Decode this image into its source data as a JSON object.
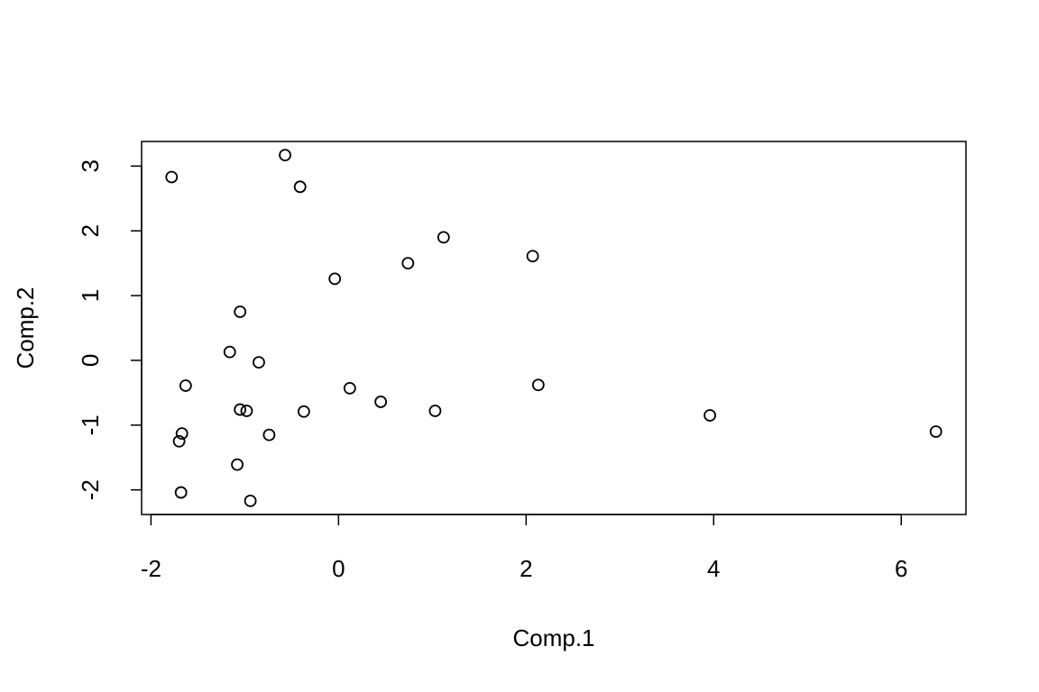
{
  "chart_data": {
    "type": "scatter",
    "x_label": "Comp.1",
    "y_label": "Comp.2",
    "x": [
      -1.78,
      -0.57,
      -0.41,
      1.12,
      2.07,
      0.74,
      -0.04,
      -1.05,
      -1.16,
      -0.85,
      -1.63,
      0.12,
      2.13,
      0.45,
      -1.05,
      -0.98,
      -0.37,
      1.03,
      3.96,
      6.37,
      -1.67,
      -0.74,
      -1.7,
      -1.08,
      -1.68,
      -0.94
    ],
    "values": [
      2.83,
      3.17,
      2.68,
      1.9,
      1.61,
      1.5,
      1.26,
      0.75,
      0.13,
      -0.03,
      -0.39,
      -0.43,
      -0.38,
      -0.64,
      -0.76,
      -0.78,
      -0.79,
      -0.78,
      -0.85,
      -1.1,
      -1.13,
      -1.15,
      -1.25,
      -1.61,
      -2.04,
      -2.17
    ],
    "color": "#000000",
    "xlim": [
      -2.1,
      6.69
    ],
    "ylim": [
      -2.38,
      3.38
    ],
    "xticks": [
      -2,
      0,
      2,
      4,
      6
    ],
    "yticks": [
      -2,
      -1,
      0,
      1,
      2,
      3
    ],
    "grid": false
  }
}
